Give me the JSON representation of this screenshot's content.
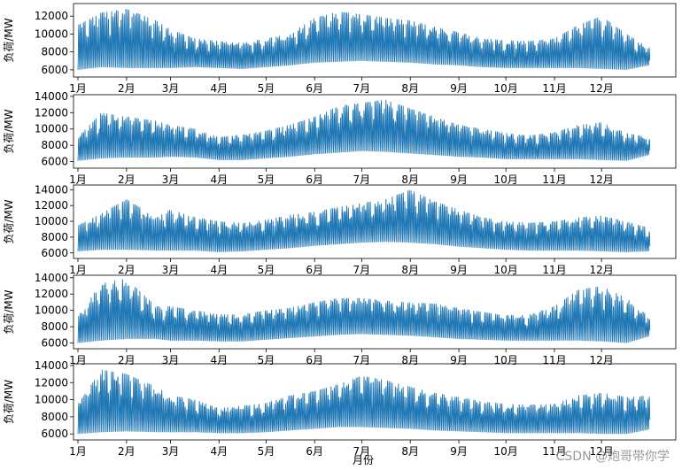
{
  "figure": {
    "xlabel": "月份",
    "watermark": "CSDN @炮哥带你学",
    "line_color": "#1f77b4"
  },
  "chart_data": [
    {
      "type": "line",
      "ylabel": "负荷/MW",
      "xlim": [
        0,
        365
      ],
      "ylim": [
        5200,
        13400
      ],
      "yticks": [
        6000,
        8000,
        10000,
        12000
      ],
      "xticks": [
        {
          "pos": 0,
          "label": "1月"
        },
        {
          "pos": 31,
          "label": "2月"
        },
        {
          "pos": 59,
          "label": "3月"
        },
        {
          "pos": 90,
          "label": "4月"
        },
        {
          "pos": 120,
          "label": "5月"
        },
        {
          "pos": 151,
          "label": "6月"
        },
        {
          "pos": 181,
          "label": "7月"
        },
        {
          "pos": 212,
          "label": "8月"
        },
        {
          "pos": 243,
          "label": "9月"
        },
        {
          "pos": 273,
          "label": "10月"
        },
        {
          "pos": 304,
          "label": "11月"
        },
        {
          "pos": 334,
          "label": "12月"
        }
      ],
      "series": [
        {
          "days": [
            0,
            15,
            31,
            50,
            59,
            75,
            90,
            105,
            120,
            135,
            151,
            166,
            181,
            196,
            212,
            228,
            243,
            258,
            273,
            288,
            304,
            319,
            334,
            350,
            364
          ],
          "min": [
            6000,
            6300,
            6200,
            6200,
            6200,
            6300,
            6200,
            6100,
            6300,
            6500,
            6800,
            6900,
            7000,
            6900,
            6800,
            6600,
            6500,
            6300,
            6200,
            6200,
            6200,
            6200,
            6100,
            6000,
            6500
          ],
          "max": [
            11000,
            12400,
            12800,
            11500,
            10500,
            9500,
            9200,
            9000,
            9500,
            10000,
            11800,
            12500,
            12200,
            11800,
            11500,
            10800,
            10200,
            9500,
            9300,
            9200,
            9500,
            11000,
            12000,
            10000,
            8500
          ]
        }
      ]
    },
    {
      "type": "line",
      "ylabel": "负荷/MW",
      "xlim": [
        0,
        365
      ],
      "ylim": [
        5200,
        14200
      ],
      "yticks": [
        6000,
        8000,
        10000,
        12000,
        14000
      ],
      "xticks": [
        {
          "pos": 0,
          "label": "1月"
        },
        {
          "pos": 31,
          "label": "2月"
        },
        {
          "pos": 59,
          "label": "3月"
        },
        {
          "pos": 90,
          "label": "4月"
        },
        {
          "pos": 120,
          "label": "5月"
        },
        {
          "pos": 151,
          "label": "6月"
        },
        {
          "pos": 181,
          "label": "7月"
        },
        {
          "pos": 212,
          "label": "8月"
        },
        {
          "pos": 243,
          "label": "9月"
        },
        {
          "pos": 273,
          "label": "10月"
        },
        {
          "pos": 304,
          "label": "11月"
        },
        {
          "pos": 334,
          "label": "12月"
        }
      ],
      "series": [
        {
          "days": [
            0,
            15,
            31,
            50,
            59,
            75,
            90,
            105,
            120,
            135,
            151,
            166,
            181,
            196,
            212,
            228,
            243,
            258,
            273,
            288,
            304,
            319,
            334,
            350,
            364
          ],
          "min": [
            6100,
            6400,
            6500,
            6500,
            6600,
            6500,
            6200,
            6200,
            6400,
            6600,
            6900,
            7100,
            7300,
            7200,
            7000,
            6800,
            6600,
            6500,
            6300,
            6300,
            6300,
            6300,
            6200,
            6100,
            6800
          ],
          "max": [
            9000,
            12000,
            11500,
            11000,
            10500,
            10000,
            9000,
            9300,
            9800,
            10500,
            11500,
            12800,
            13200,
            13600,
            12500,
            11500,
            10500,
            10000,
            9500,
            9200,
            9600,
            10500,
            10800,
            9500,
            9000
          ]
        }
      ]
    },
    {
      "type": "line",
      "ylabel": "负荷/MW",
      "xlim": [
        0,
        365
      ],
      "ylim": [
        5300,
        14600
      ],
      "yticks": [
        6000,
        8000,
        10000,
        12000,
        14000
      ],
      "xticks": [
        {
          "pos": 0,
          "label": "1月"
        },
        {
          "pos": 31,
          "label": "2月"
        },
        {
          "pos": 59,
          "label": "3月"
        },
        {
          "pos": 90,
          "label": "4月"
        },
        {
          "pos": 120,
          "label": "5月"
        },
        {
          "pos": 151,
          "label": "6月"
        },
        {
          "pos": 181,
          "label": "7月"
        },
        {
          "pos": 212,
          "label": "8月"
        },
        {
          "pos": 243,
          "label": "9月"
        },
        {
          "pos": 273,
          "label": "10月"
        },
        {
          "pos": 304,
          "label": "11月"
        },
        {
          "pos": 334,
          "label": "12月"
        }
      ],
      "series": [
        {
          "days": [
            0,
            15,
            31,
            50,
            59,
            75,
            90,
            105,
            120,
            135,
            151,
            166,
            181,
            196,
            212,
            228,
            243,
            258,
            273,
            288,
            304,
            319,
            334,
            350,
            364
          ],
          "min": [
            6200,
            6400,
            6400,
            6300,
            6300,
            6300,
            6100,
            6200,
            6400,
            6600,
            6900,
            7100,
            7300,
            7400,
            7300,
            7100,
            6800,
            6600,
            6400,
            6300,
            6300,
            6300,
            6200,
            6100,
            6200
          ],
          "max": [
            9500,
            11000,
            12800,
            10500,
            11500,
            10500,
            10000,
            9800,
            10200,
            10800,
            11200,
            11800,
            12300,
            12800,
            14000,
            12500,
            11500,
            10500,
            10000,
            9800,
            10000,
            10500,
            10700,
            10000,
            9200
          ]
        }
      ]
    },
    {
      "type": "line",
      "ylabel": "负荷/MW",
      "xlim": [
        0,
        365
      ],
      "ylim": [
        5300,
        14300
      ],
      "yticks": [
        6000,
        8000,
        10000,
        12000,
        14000
      ],
      "xticks": [
        {
          "pos": 0,
          "label": "1月"
        },
        {
          "pos": 31,
          "label": "2月"
        },
        {
          "pos": 59,
          "label": "3月"
        },
        {
          "pos": 90,
          "label": "4月"
        },
        {
          "pos": 120,
          "label": "5月"
        },
        {
          "pos": 151,
          "label": "6月"
        },
        {
          "pos": 181,
          "label": "7月"
        },
        {
          "pos": 212,
          "label": "8月"
        },
        {
          "pos": 243,
          "label": "9月"
        },
        {
          "pos": 273,
          "label": "10月"
        },
        {
          "pos": 304,
          "label": "11月"
        },
        {
          "pos": 334,
          "label": "12月"
        }
      ],
      "series": [
        {
          "days": [
            0,
            15,
            31,
            50,
            59,
            75,
            90,
            105,
            120,
            135,
            151,
            166,
            181,
            196,
            212,
            228,
            243,
            258,
            273,
            288,
            304,
            319,
            334,
            350,
            364
          ],
          "min": [
            6000,
            6300,
            6500,
            6500,
            6300,
            6300,
            6200,
            6200,
            6400,
            6600,
            6800,
            7000,
            7100,
            7000,
            6900,
            6700,
            6500,
            6400,
            6300,
            6300,
            6300,
            6300,
            6200,
            6000,
            6800
          ],
          "max": [
            9300,
            13400,
            13900,
            10500,
            10500,
            10000,
            9500,
            9500,
            10000,
            10300,
            11000,
            11500,
            11500,
            11200,
            11000,
            10800,
            10300,
            9800,
            9400,
            9500,
            10500,
            12500,
            13000,
            11500,
            9300
          ]
        }
      ]
    },
    {
      "type": "line",
      "ylabel": "负荷/MW",
      "xlim": [
        0,
        365
      ],
      "ylim": [
        5300,
        14200
      ],
      "yticks": [
        6000,
        8000,
        10000,
        12000,
        14000
      ],
      "xticks": [
        {
          "pos": 0,
          "label": "1月"
        },
        {
          "pos": 31,
          "label": "2月"
        },
        {
          "pos": 59,
          "label": "3月"
        },
        {
          "pos": 90,
          "label": "4月"
        },
        {
          "pos": 120,
          "label": "5月"
        },
        {
          "pos": 151,
          "label": "6月"
        },
        {
          "pos": 181,
          "label": "7月"
        },
        {
          "pos": 212,
          "label": "8月"
        },
        {
          "pos": 243,
          "label": "9月"
        },
        {
          "pos": 273,
          "label": "10月"
        },
        {
          "pos": 304,
          "label": "11月"
        },
        {
          "pos": 334,
          "label": "12月"
        }
      ],
      "series": [
        {
          "days": [
            0,
            15,
            31,
            50,
            59,
            75,
            90,
            105,
            120,
            135,
            151,
            166,
            181,
            196,
            212,
            228,
            243,
            258,
            273,
            288,
            304,
            319,
            334,
            350,
            364
          ],
          "min": [
            6000,
            6200,
            6300,
            6200,
            6200,
            6200,
            6100,
            6100,
            6200,
            6400,
            6600,
            6800,
            6800,
            6700,
            6600,
            6400,
            6300,
            6200,
            6100,
            6100,
            6100,
            6100,
            6000,
            6000,
            6500
          ],
          "max": [
            9500,
            13500,
            13000,
            11500,
            10500,
            10000,
            9000,
            9300,
            9600,
            10500,
            11000,
            11800,
            12800,
            12300,
            11500,
            10800,
            10300,
            9800,
            9500,
            9400,
            9500,
            10500,
            10800,
            10300,
            10500
          ]
        }
      ]
    }
  ]
}
